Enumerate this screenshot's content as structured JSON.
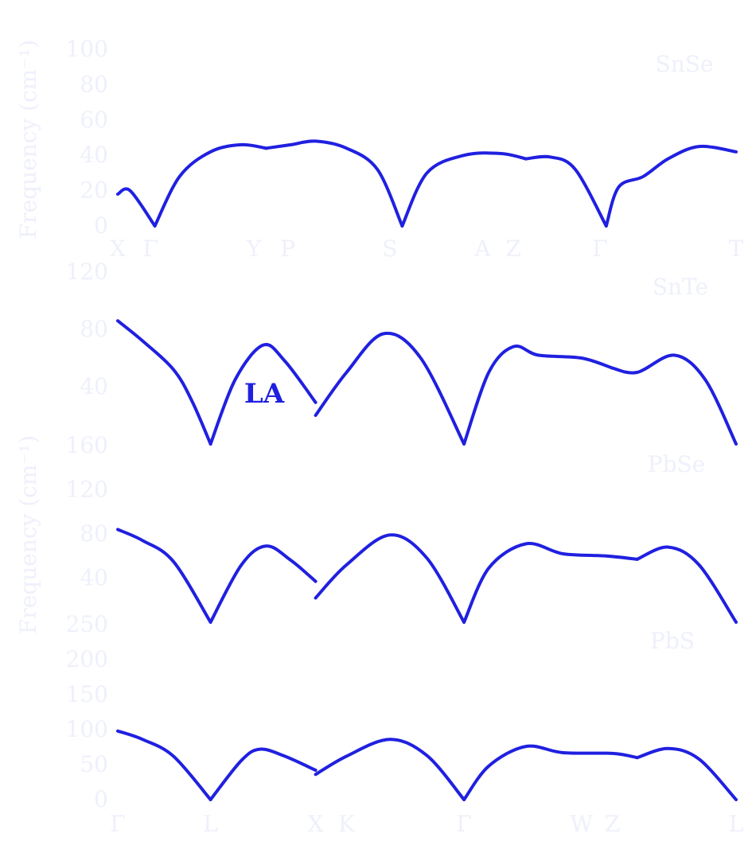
{
  "chart_data": [
    {
      "type": "line",
      "material": "SnSe",
      "ylabel": "Frequency (cm⁻¹)",
      "yticks": [
        0,
        20,
        40,
        60,
        80,
        100
      ],
      "ylim": [
        0,
        100
      ],
      "xticks": [
        "X",
        "Γ",
        "Y",
        "P",
        "S",
        "A",
        "Z",
        "Γ",
        "T"
      ],
      "xlim": [
        0,
        1
      ],
      "series": [
        {
          "name": "",
          "color": "#2020e0",
          "segments": [
            {
              "x": [
                0.0,
                0.02,
                0.06
              ],
              "y": [
                18,
                20,
                0
              ]
            },
            {
              "x": [
                0.06,
                0.1,
                0.15,
                0.2,
                0.24
              ],
              "y": [
                0,
                28,
                42,
                46,
                44
              ]
            },
            {
              "x": [
                0.24,
                0.28,
                0.32,
                0.37,
                0.42,
                0.46
              ],
              "y": [
                44,
                46,
                48,
                44,
                32,
                0
              ]
            },
            {
              "x": [
                0.46,
                0.5,
                0.56,
                0.62,
                0.66
              ],
              "y": [
                0,
                30,
                40,
                41,
                38
              ]
            },
            {
              "x": [
                0.66,
                0.7,
                0.74,
                0.79
              ],
              "y": [
                38,
                39,
                32,
                0
              ]
            },
            {
              "x": [
                0.79,
                0.81,
                0.85,
                0.89,
                0.94,
                1.0
              ],
              "y": [
                0,
                22,
                28,
                38,
                45,
                42
              ]
            }
          ]
        }
      ]
    },
    {
      "type": "line",
      "material": "SnTe",
      "ylabel": "Frequency (cm⁻¹)",
      "yticks": [
        40,
        80,
        120
      ],
      "ylim": [
        0,
        120
      ],
      "xticks": [],
      "xlim": [
        0,
        1
      ],
      "series": [
        {
          "name": "LA",
          "color": "#2020e0",
          "segments": [
            {
              "x": [
                0.0,
                0.04,
                0.09,
                0.12,
                0.15
              ],
              "y": [
                86,
                72,
                52,
                30,
                0
              ]
            },
            {
              "x": [
                0.15,
                0.19,
                0.235,
                0.27,
                0.32
              ],
              "y": [
                0,
                45,
                69,
                58,
                29
              ]
            },
            {
              "x": [
                0.32,
                0.37,
                0.43,
                0.49,
                0.56
              ],
              "y": [
                20,
                50,
                77,
                60,
                0
              ]
            },
            {
              "x": [
                0.56,
                0.6,
                0.64,
                0.68,
                0.75,
                0.8
              ],
              "y": [
                0,
                50,
                68,
                62,
                60,
                53
              ]
            },
            {
              "x": [
                0.8,
                0.84,
                0.9,
                0.95,
                1.0
              ],
              "y": [
                53,
                50,
                62,
                45,
                0
              ]
            }
          ]
        }
      ]
    },
    {
      "type": "line",
      "material": "PbSe",
      "ylabel": "Frequency (cm⁻¹)",
      "yticks": [
        40,
        80,
        120,
        160
      ],
      "ylim": [
        0,
        160
      ],
      "xticks": [],
      "xlim": [
        0,
        1
      ],
      "series": [
        {
          "name": "",
          "color": "#2020e0",
          "segments": [
            {
              "x": [
                0.0,
                0.04,
                0.09,
                0.15
              ],
              "y": [
                84,
                74,
                55,
                0
              ]
            },
            {
              "x": [
                0.15,
                0.2,
                0.24,
                0.28,
                0.32
              ],
              "y": [
                0,
                52,
                69,
                56,
                37
              ]
            },
            {
              "x": [
                0.32,
                0.37,
                0.44,
                0.5,
                0.56
              ],
              "y": [
                22,
                52,
                79,
                58,
                0
              ]
            },
            {
              "x": [
                0.56,
                0.6,
                0.66,
                0.72,
                0.79,
                0.84
              ],
              "y": [
                0,
                49,
                71,
                62,
                60,
                57
              ]
            },
            {
              "x": [
                0.84,
                0.89,
                0.94,
                1.0
              ],
              "y": [
                57,
                68,
                52,
                0
              ]
            }
          ]
        }
      ]
    },
    {
      "type": "line",
      "material": "PbS",
      "ylabel": "Frequency (cm⁻¹)",
      "yticks": [
        0,
        50,
        100,
        150,
        200,
        250
      ],
      "ylim": [
        0,
        250
      ],
      "xticks": [
        "Γ",
        "L",
        "X",
        "K",
        "Γ",
        "W",
        "Z",
        "L"
      ],
      "xlim": [
        0,
        1
      ],
      "series": [
        {
          "name": "",
          "color": "#2020e0",
          "segments": [
            {
              "x": [
                0.0,
                0.04,
                0.09,
                0.15
              ],
              "y": [
                98,
                86,
                62,
                0
              ]
            },
            {
              "x": [
                0.15,
                0.2,
                0.23,
                0.27,
                0.32
              ],
              "y": [
                0,
                56,
                72,
                62,
                42
              ]
            },
            {
              "x": [
                0.32,
                0.37,
                0.44,
                0.5,
                0.56
              ],
              "y": [
                36,
                62,
                86,
                63,
                0
              ]
            },
            {
              "x": [
                0.56,
                0.6,
                0.66,
                0.72,
                0.8,
                0.84
              ],
              "y": [
                0,
                48,
                76,
                67,
                66,
                60
              ]
            },
            {
              "x": [
                0.84,
                0.89,
                0.94,
                1.0
              ],
              "y": [
                60,
                73,
                58,
                0
              ]
            }
          ]
        }
      ]
    }
  ]
}
